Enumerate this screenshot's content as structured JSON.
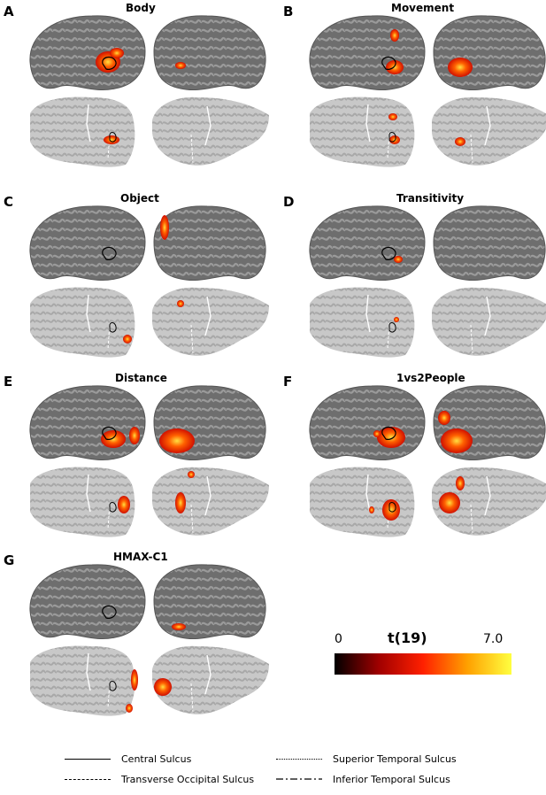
{
  "panels": [
    {
      "letter": "A",
      "title": "Body"
    },
    {
      "letter": "B",
      "title": "Movement"
    },
    {
      "letter": "C",
      "title": "Object"
    },
    {
      "letter": "D",
      "title": "Transitivity"
    },
    {
      "letter": "E",
      "title": "Distance"
    },
    {
      "letter": "F",
      "title": "1vs2People"
    },
    {
      "letter": "G",
      "title": "HMAX-C1"
    }
  ],
  "colorbar": {
    "title": "t(19)",
    "min_label": "0",
    "max_label": "7.0",
    "colors": [
      "#000000",
      "#a00000",
      "#ff2000",
      "#ffa000",
      "#ffff40"
    ]
  },
  "legend": [
    {
      "label": "Central Sulcus",
      "style": "solid"
    },
    {
      "label": "Superior Temporal Sulcus",
      "style": "dotted"
    },
    {
      "label": "Transverse Occipital Sulcus",
      "style": "dashed"
    },
    {
      "label": "Inferior Temporal Sulcus",
      "style": "dashdot"
    }
  ],
  "colors": {
    "brain_dark": "#6e6e6e",
    "brain_light": "#9a9a9a",
    "flat_light": "#c8c8c8",
    "flat_dark": "#a8a8a8"
  }
}
